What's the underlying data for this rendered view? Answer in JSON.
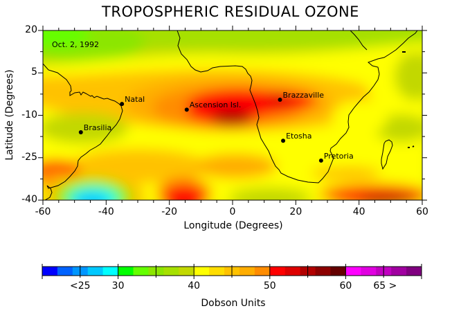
{
  "title": "TROPOSPHERIC RESIDUAL OZONE",
  "date_label": "Oct. 2, 1992",
  "map": {
    "xlabel": "Longitude (Degrees)",
    "ylabel": "Latitude (Degrees)",
    "x_ticks": [
      "-60",
      "-40",
      "-20",
      "0",
      "20",
      "40",
      "60"
    ],
    "y_ticks": [
      "20",
      "5",
      "-10",
      "-25",
      "-40"
    ],
    "xlim": [
      -60,
      60
    ],
    "ylim": [
      -40,
      20
    ],
    "cities": [
      {
        "name": "Natal",
        "lon": -35,
        "lat": -6
      },
      {
        "name": "Ascension Isl.",
        "lon": -14.5,
        "lat": -8
      },
      {
        "name": "Brazzaville",
        "lon": 15,
        "lat": -4.5
      },
      {
        "name": "Brasilia",
        "lon": -48,
        "lat": -16
      },
      {
        "name": "Etosha",
        "lon": 16,
        "lat": -19
      },
      {
        "name": "Pretoria",
        "lon": 28,
        "lat": -26
      }
    ]
  },
  "colorbar": {
    "label": "Dobson Units",
    "tick_labels": [
      "<25",
      "30",
      "40",
      "50",
      "60",
      "65 >"
    ],
    "colors": [
      "#0000ff",
      "#0062ff",
      "#0096ff",
      "#00c8ff",
      "#00ffff",
      "#00ff00",
      "#64ff00",
      "#8ce600",
      "#a6e000",
      "#c2d800",
      "#ffff00",
      "#ffdd00",
      "#ffc200",
      "#ffad00",
      "#ff8c00",
      "#ff0000",
      "#dd0000",
      "#b20000",
      "#8c0000",
      "#640000",
      "#ff00ff",
      "#e000e0",
      "#c000c0",
      "#a000a0",
      "#800080"
    ]
  },
  "chart_data": {
    "type": "heatmap",
    "title": "TROPOSPHERIC RESIDUAL OZONE",
    "subtitle": "Oct. 2, 1992",
    "xlabel": "Longitude (Degrees)",
    "ylabel": "Latitude (Degrees)",
    "xlim": [
      -60,
      60
    ],
    "ylim": [
      -40,
      20
    ],
    "x_ticks": [
      -60,
      -40,
      -20,
      0,
      20,
      40,
      60
    ],
    "y_ticks": [
      20,
      5,
      -10,
      -25,
      -40
    ],
    "colorbar_label": "Dobson Units",
    "colorbar_ticks": [
      "<25",
      "30",
      "40",
      "50",
      "60",
      "65 >"
    ],
    "colorbar_range": [
      23,
      67
    ],
    "annotations": [
      "Natal",
      "Ascension Isl.",
      "Brazzaville",
      "Brasilia",
      "Etosha",
      "Pretoria"
    ],
    "features": [
      {
        "region": "Central South Atlantic / Ascension-Brazzaville plume",
        "value_du": "50-58"
      },
      {
        "region": "Southwest South Atlantic (near -47, -38)",
        "value_du": "25-30"
      },
      {
        "region": "Southern Indian Ocean (40-60E, -35 to -40)",
        "value_du": "50-56"
      },
      {
        "region": "Northwest corner (-60, 20)",
        "value_du": "32-34"
      },
      {
        "region": "Southern Africa interior",
        "value_du": "40-44"
      }
    ]
  }
}
